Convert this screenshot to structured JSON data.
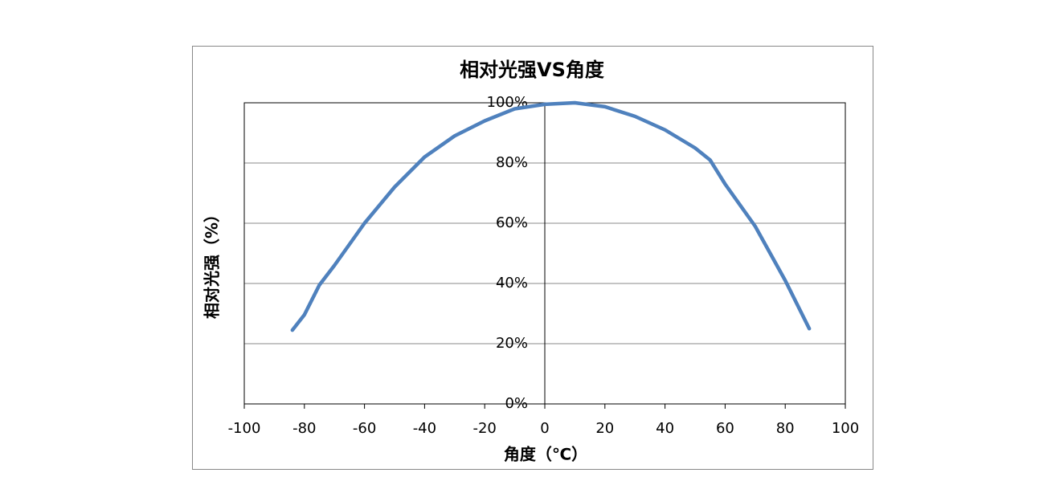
{
  "chart_data": {
    "type": "line",
    "title": "相对光强VS角度",
    "x_label": "角度（℃）",
    "y_label": "相对光强（%）",
    "x": [
      -84,
      -80,
      -75,
      -70,
      -60,
      -50,
      -40,
      -30,
      -20,
      -10,
      0,
      10,
      20,
      30,
      40,
      50,
      55,
      60,
      70,
      80,
      85,
      88
    ],
    "values": [
      24.5,
      29.6,
      39.5,
      46,
      60,
      72,
      82,
      89,
      94,
      98,
      99.5,
      100,
      98.7,
      95.5,
      91,
      85,
      81,
      73,
      59,
      41,
      31,
      25
    ],
    "color": "#4f81bd",
    "xlim": [
      -100,
      100
    ],
    "xticks": [
      -100,
      -80,
      -60,
      -40,
      -20,
      0,
      20,
      40,
      60,
      80,
      100
    ],
    "ylim": [
      0,
      100
    ],
    "yticks": [
      {
        "value": 0,
        "label": "0%"
      },
      {
        "value": 20,
        "label": "20%"
      },
      {
        "value": 40,
        "label": "40%"
      },
      {
        "value": 60,
        "label": "60%"
      },
      {
        "value": 80,
        "label": "80%"
      },
      {
        "value": 100,
        "label": "100%"
      }
    ],
    "grid": true
  }
}
